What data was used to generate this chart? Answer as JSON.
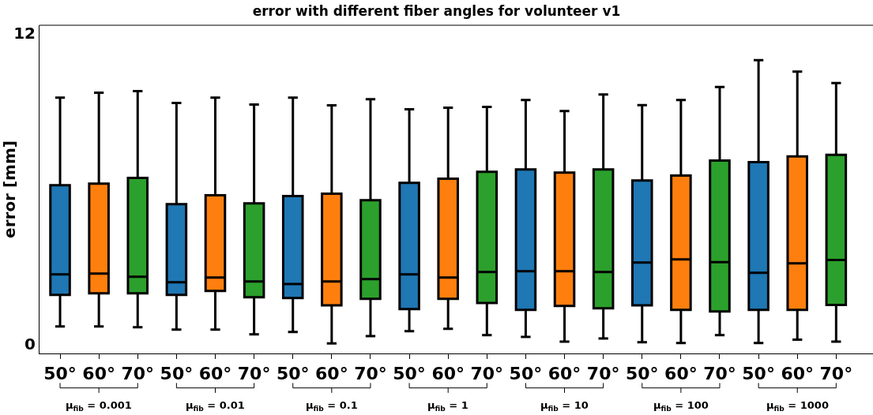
{
  "chart_data": {
    "type": "box",
    "title": "error with different fiber angles for volunteer v1",
    "ylabel": "error [mm]",
    "categories": [
      "50°",
      "60°",
      "70°",
      "50°",
      "60°",
      "70°",
      "50°",
      "60°",
      "70°",
      "50°",
      "60°",
      "70°",
      "50°",
      "60°",
      "70°",
      "50°",
      "60°",
      "70°",
      "50°",
      "60°",
      "70°"
    ],
    "colors": [
      "#1f77b4",
      "#ff7f0e",
      "#2ca02c",
      "#1f77b4",
      "#ff7f0e",
      "#2ca02c",
      "#1f77b4",
      "#ff7f0e",
      "#2ca02c",
      "#1f77b4",
      "#ff7f0e",
      "#2ca02c",
      "#1f77b4",
      "#ff7f0e",
      "#2ca02c",
      "#1f77b4",
      "#ff7f0e",
      "#2ca02c",
      "#1f77b4",
      "#ff7f0e",
      "#2ca02c"
    ],
    "boxes": [
      {
        "low": 0.67,
        "q1": 1.89,
        "median": 2.68,
        "q3": 6.12,
        "high": 9.5
      },
      {
        "low": 0.67,
        "q1": 1.95,
        "median": 2.71,
        "q3": 6.18,
        "high": 9.69
      },
      {
        "low": 0.64,
        "q1": 1.95,
        "median": 2.59,
        "q3": 6.4,
        "high": 9.75
      },
      {
        "low": 0.55,
        "q1": 1.89,
        "median": 2.38,
        "q3": 5.39,
        "high": 9.29
      },
      {
        "low": 0.55,
        "q1": 2.04,
        "median": 2.56,
        "q3": 5.73,
        "high": 9.5
      },
      {
        "low": 0.37,
        "q1": 1.8,
        "median": 2.41,
        "q3": 5.42,
        "high": 9.23
      },
      {
        "low": 0.46,
        "q1": 1.77,
        "median": 2.31,
        "q3": 5.7,
        "high": 9.5
      },
      {
        "low": 0.02,
        "q1": 1.49,
        "median": 2.41,
        "q3": 5.79,
        "high": 9.2
      },
      {
        "low": 0.3,
        "q1": 1.74,
        "median": 2.5,
        "q3": 5.54,
        "high": 9.44
      },
      {
        "low": 0.49,
        "q1": 1.34,
        "median": 2.68,
        "q3": 6.21,
        "high": 9.05
      },
      {
        "low": 0.58,
        "q1": 1.74,
        "median": 2.56,
        "q3": 6.37,
        "high": 9.11
      },
      {
        "low": 0.34,
        "q1": 1.58,
        "median": 2.77,
        "q3": 6.64,
        "high": 9.14
      },
      {
        "low": 0.27,
        "q1": 1.31,
        "median": 2.8,
        "q3": 6.73,
        "high": 9.41
      },
      {
        "low": 0.09,
        "q1": 1.46,
        "median": 2.8,
        "q3": 6.61,
        "high": 8.98
      },
      {
        "low": 0.21,
        "q1": 1.37,
        "median": 2.77,
        "q3": 6.73,
        "high": 9.62
      },
      {
        "low": 0.06,
        "q1": 1.49,
        "median": 3.14,
        "q3": 6.3,
        "high": 9.21
      },
      {
        "low": 0.03,
        "q1": 1.31,
        "median": 3.26,
        "q3": 6.49,
        "high": 9.41
      },
      {
        "low": 0.34,
        "q1": 1.25,
        "median": 3.15,
        "q3": 7.07,
        "high": 9.91
      },
      {
        "low": 0.03,
        "q1": 1.31,
        "median": 2.74,
        "q3": 7.01,
        "high": 10.94
      },
      {
        "low": 0.16,
        "q1": 1.31,
        "median": 3.11,
        "q3": 7.23,
        "high": 10.5
      },
      {
        "low": 0.09,
        "q1": 1.5,
        "median": 3.24,
        "q3": 7.29,
        "high": 10.06
      }
    ],
    "ylim": [
      -0.37,
      12.29
    ],
    "yticks": [
      0,
      12
    ],
    "annotations": [
      "μ$_{fib}$ = 0.001",
      "μ$_{fib}$ = 0.01",
      "μ$_{fib}$ = 0.1",
      "μ$_{fib}$ = 1",
      "μ$_{fib}$ = 10",
      "μ$_{fib}$ = 100",
      "μ$_{fib}$ = 1000"
    ]
  }
}
